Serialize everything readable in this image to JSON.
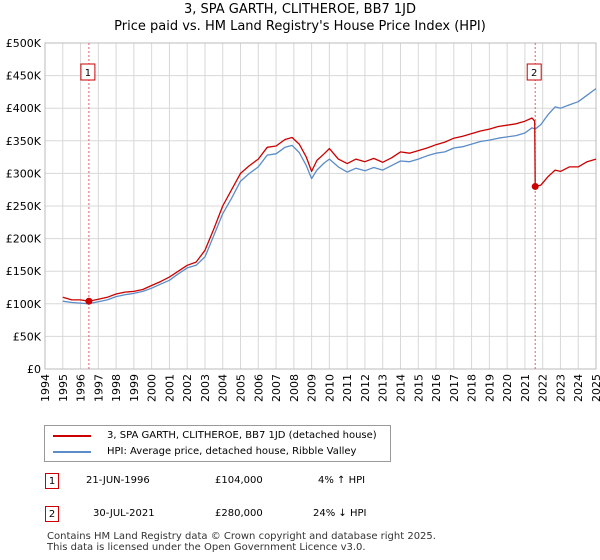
{
  "chart_data": {
    "type": "line",
    "title": "3, SPA GARTH, CLITHEROE, BB7 1JD",
    "subtitle": "Price paid vs. HM Land Registry's House Price Index (HPI)",
    "xlim": [
      1994,
      2025
    ],
    "ylim": [
      0,
      500000
    ],
    "x_ticks": [
      "1994",
      "1995",
      "1996",
      "1997",
      "1998",
      "1999",
      "2000",
      "2001",
      "2002",
      "2003",
      "2004",
      "2005",
      "2006",
      "2007",
      "2008",
      "2009",
      "2010",
      "2011",
      "2012",
      "2013",
      "2014",
      "2015",
      "2016",
      "2017",
      "2018",
      "2019",
      "2020",
      "2021",
      "2022",
      "2023",
      "2024",
      "2025"
    ],
    "y_ticks": [
      0,
      50000,
      100000,
      150000,
      200000,
      250000,
      300000,
      350000,
      400000,
      450000,
      500000
    ],
    "y_tick_labels": [
      "£0",
      "£50K",
      "£100K",
      "£150K",
      "£200K",
      "£250K",
      "£300K",
      "£350K",
      "£400K",
      "£450K",
      "£500K"
    ],
    "grid": true,
    "series": [
      {
        "name": "3, SPA GARTH, CLITHEROE, BB7 1JD (detached house)",
        "color": "#cc0000",
        "x": [
          1995.0,
          1995.5,
          1996.0,
          1996.47,
          1997.0,
          1997.5,
          1998.0,
          1998.5,
          1999.0,
          1999.5,
          2000.0,
          2000.5,
          2001.0,
          2001.5,
          2002.0,
          2002.5,
          2003.0,
          2003.5,
          2004.0,
          2004.5,
          2005.0,
          2005.5,
          2006.0,
          2006.5,
          2007.0,
          2007.5,
          2007.9,
          2008.3,
          2008.7,
          2009.0,
          2009.3,
          2009.7,
          2010.0,
          2010.5,
          2011.0,
          2011.5,
          2012.0,
          2012.5,
          2013.0,
          2013.5,
          2014.0,
          2014.5,
          2015.0,
          2015.5,
          2016.0,
          2016.5,
          2017.0,
          2017.5,
          2018.0,
          2018.5,
          2019.0,
          2019.5,
          2020.0,
          2020.5,
          2021.0,
          2021.4,
          2021.55,
          2021.58,
          2021.9,
          2022.3,
          2022.7,
          2023.0,
          2023.5,
          2024.0,
          2024.5,
          2025.0
        ],
        "values": [
          110000,
          106000,
          106000,
          104000,
          107000,
          110000,
          115000,
          118000,
          119000,
          122000,
          128000,
          134000,
          141000,
          150000,
          159000,
          164000,
          182000,
          215000,
          250000,
          275000,
          300000,
          312000,
          322000,
          340000,
          342000,
          352000,
          355000,
          345000,
          325000,
          303000,
          320000,
          330000,
          338000,
          322000,
          315000,
          322000,
          318000,
          323000,
          317000,
          324000,
          333000,
          331000,
          335000,
          339000,
          344000,
          348000,
          354000,
          357000,
          361000,
          365000,
          368000,
          372000,
          374000,
          376000,
          380000,
          385000,
          380000,
          280000,
          282000,
          295000,
          305000,
          303000,
          310000,
          310000,
          318000,
          322000
        ]
      },
      {
        "name": "HPI: Average price, detached house, Ribble Valley",
        "color": "#5b8cc8",
        "x": [
          1995.0,
          1995.5,
          1996.0,
          1996.47,
          1997.0,
          1997.5,
          1998.0,
          1998.5,
          1999.0,
          1999.5,
          2000.0,
          2000.5,
          2001.0,
          2001.5,
          2002.0,
          2002.5,
          2003.0,
          2003.5,
          2004.0,
          2004.5,
          2005.0,
          2005.5,
          2006.0,
          2006.5,
          2007.0,
          2007.5,
          2007.9,
          2008.3,
          2008.7,
          2009.0,
          2009.3,
          2009.7,
          2010.0,
          2010.5,
          2011.0,
          2011.5,
          2012.0,
          2012.5,
          2013.0,
          2013.5,
          2014.0,
          2014.5,
          2015.0,
          2015.5,
          2016.0,
          2016.5,
          2017.0,
          2017.5,
          2018.0,
          2018.5,
          2019.0,
          2019.5,
          2020.0,
          2020.5,
          2021.0,
          2021.4,
          2021.58,
          2021.9,
          2022.3,
          2022.7,
          2023.0,
          2023.5,
          2024.0,
          2024.5,
          2025.0
        ],
        "values": [
          104000,
          102000,
          101000,
          100000,
          103000,
          106000,
          111000,
          114000,
          116000,
          119000,
          124000,
          130000,
          136000,
          146000,
          155000,
          159000,
          172000,
          205000,
          238000,
          262000,
          288000,
          300000,
          310000,
          328000,
          330000,
          340000,
          343000,
          332000,
          312000,
          292000,
          305000,
          316000,
          322000,
          310000,
          302000,
          308000,
          304000,
          309000,
          305000,
          312000,
          319000,
          318000,
          322000,
          327000,
          331000,
          333000,
          339000,
          341000,
          345000,
          349000,
          351000,
          354000,
          356000,
          358000,
          362000,
          370000,
          368000,
          375000,
          390000,
          402000,
          400000,
          405000,
          410000,
          420000,
          430000
        ]
      }
    ],
    "sales": [
      {
        "label": "1",
        "x": 1996.47,
        "price": 104000
      },
      {
        "label": "2",
        "x": 2021.58,
        "price": 280000
      }
    ]
  },
  "legend": {
    "sale_line": "3, SPA GARTH, CLITHEROE, BB7 1JD (detached house)",
    "hpi_line": "HPI: Average price, detached house, Ribble Valley"
  },
  "transactions": [
    {
      "num": "1",
      "date": "21-JUN-1996",
      "price": "£104,000",
      "hpi": "4% ↑ HPI"
    },
    {
      "num": "2",
      "date": "30-JUL-2021",
      "price": "£280,000",
      "hpi": "24% ↓ HPI"
    }
  ],
  "footer": {
    "line1": "Contains HM Land Registry data © Crown copyright and database right 2025.",
    "line2": "This data is licensed under the Open Government Licence v3.0."
  }
}
